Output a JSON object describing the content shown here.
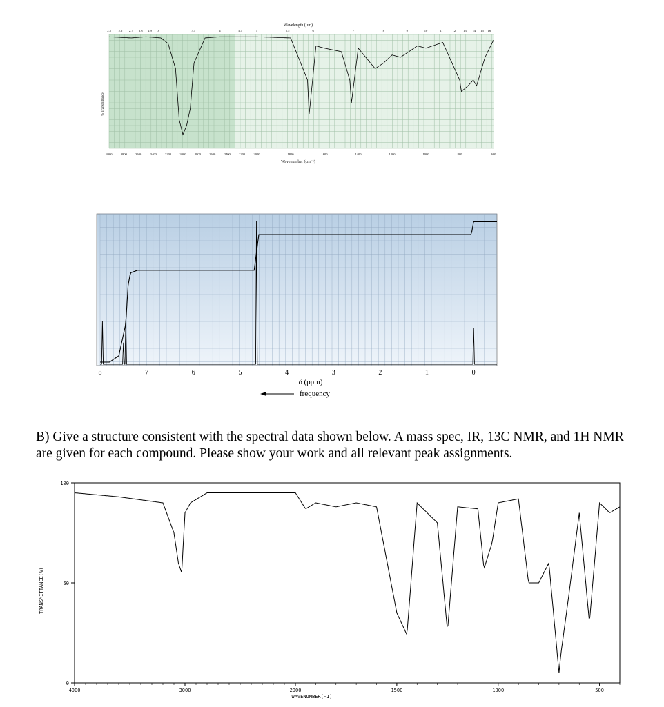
{
  "ir_top": {
    "top_axis_label": "Wavelength (µm)",
    "wavelength_ticks": [
      "2.5",
      "2.6",
      "2.7",
      "2.8",
      "2.9",
      "3",
      "3.5",
      "4",
      "4.5",
      "5",
      "5.5",
      "6",
      "7",
      "8",
      "9",
      "10",
      "11",
      "12",
      "13",
      "14",
      "15",
      "16"
    ],
    "bottom_axis_label": "Wavenumber (cm⁻¹)",
    "wavenumber_ticks": [
      "4000",
      "3800",
      "3600",
      "3400",
      "3200",
      "3000",
      "2800",
      "2600",
      "2400",
      "2200",
      "2000",
      "1800",
      "1600",
      "1400",
      "1200",
      "1000",
      "800",
      "600"
    ],
    "y_label": "% Transmittance",
    "colors": {
      "grid_left": "#c7e2cc",
      "grid_right": "#e6f2e8",
      "line": "#000000"
    }
  },
  "nmr": {
    "x_label": "δ (ppm)",
    "arrow_label": "frequency",
    "x_ticks": [
      "8",
      "7",
      "6",
      "5",
      "4",
      "3",
      "2",
      "1",
      "0"
    ],
    "colors": {
      "bg_top": "#b9cfe4",
      "bg_bottom": "#eaf1f8"
    }
  },
  "question": {
    "text": "B) Give a structure consistent with the spectral data shown below.  A mass spec, IR, 13C NMR, and 1H NMR are given for each compound.  Please show your work and all relevant peak assignments."
  },
  "ir_bottom": {
    "y_label": "TRANSMITTANCE(%)",
    "x_label": "WAVENUMBER(-1)",
    "y_ticks": [
      "100",
      "50",
      "0"
    ],
    "x_ticks": [
      "4000",
      "3000",
      "2000",
      "1500",
      "1000",
      "500"
    ]
  },
  "chart_data": [
    {
      "type": "line",
      "x": [
        4000,
        3700,
        3500,
        3300,
        3200,
        3100,
        3050,
        3000,
        2950,
        2900,
        2850,
        2700,
        2500,
        2200,
        2000,
        1800,
        1700,
        1690,
        1650,
        1600,
        1500,
        1450,
        1440,
        1400,
        1300,
        1250,
        1200,
        1150,
        1100,
        1050,
        1000,
        900,
        800,
        790,
        750,
        720,
        700,
        650,
        600
      ],
      "y": [
        98,
        97,
        98,
        97,
        92,
        70,
        25,
        12,
        20,
        35,
        75,
        97,
        98,
        98,
        98,
        97,
        60,
        30,
        90,
        88,
        85,
        60,
        40,
        88,
        70,
        75,
        82,
        80,
        85,
        90,
        88,
        93,
        60,
        50,
        55,
        60,
        55,
        80,
        95
      ]
    },
    {
      "type": "line",
      "x": [
        8,
        7.8,
        7.6,
        7.45,
        7.4,
        7.35,
        7.2,
        6,
        5,
        4.7,
        4.6,
        3,
        1,
        0.05,
        0,
        -0.05,
        -0.5
      ],
      "integral": [
        0,
        0,
        0.05,
        0.3,
        0.6,
        0.7,
        0.72,
        0.72,
        0.72,
        0.72,
        1.0,
        1.0,
        1.0,
        1.0,
        1.1,
        1.1,
        1.1
      ],
      "peaks": [
        {
          "ppm": 7.95,
          "height": 0.3
        },
        {
          "ppm": 7.5,
          "height": 0.15
        },
        {
          "ppm": 7.45,
          "height": 0.3
        },
        {
          "ppm": 4.65,
          "height": 1.0
        },
        {
          "ppm": 0.0,
          "height": 0.25
        }
      ]
    },
    {
      "type": "line",
      "x": [
        4000,
        3600,
        3200,
        3100,
        3060,
        3030,
        3000,
        2950,
        2800,
        2500,
        2000,
        1950,
        1900,
        1800,
        1700,
        1600,
        1500,
        1450,
        1400,
        1300,
        1250,
        1200,
        1100,
        1070,
        1030,
        1000,
        900,
        850,
        800,
        750,
        700,
        690,
        650,
        600,
        550,
        500,
        450,
        400
      ],
      "y": [
        95,
        93,
        90,
        75,
        60,
        55,
        85,
        90,
        95,
        95,
        95,
        87,
        90,
        88,
        90,
        88,
        35,
        24,
        90,
        80,
        26,
        88,
        87,
        57,
        70,
        90,
        92,
        50,
        50,
        60,
        5,
        15,
        45,
        85,
        30,
        90,
        85,
        88
      ],
      "ylim": [
        0,
        100
      ]
    }
  ]
}
